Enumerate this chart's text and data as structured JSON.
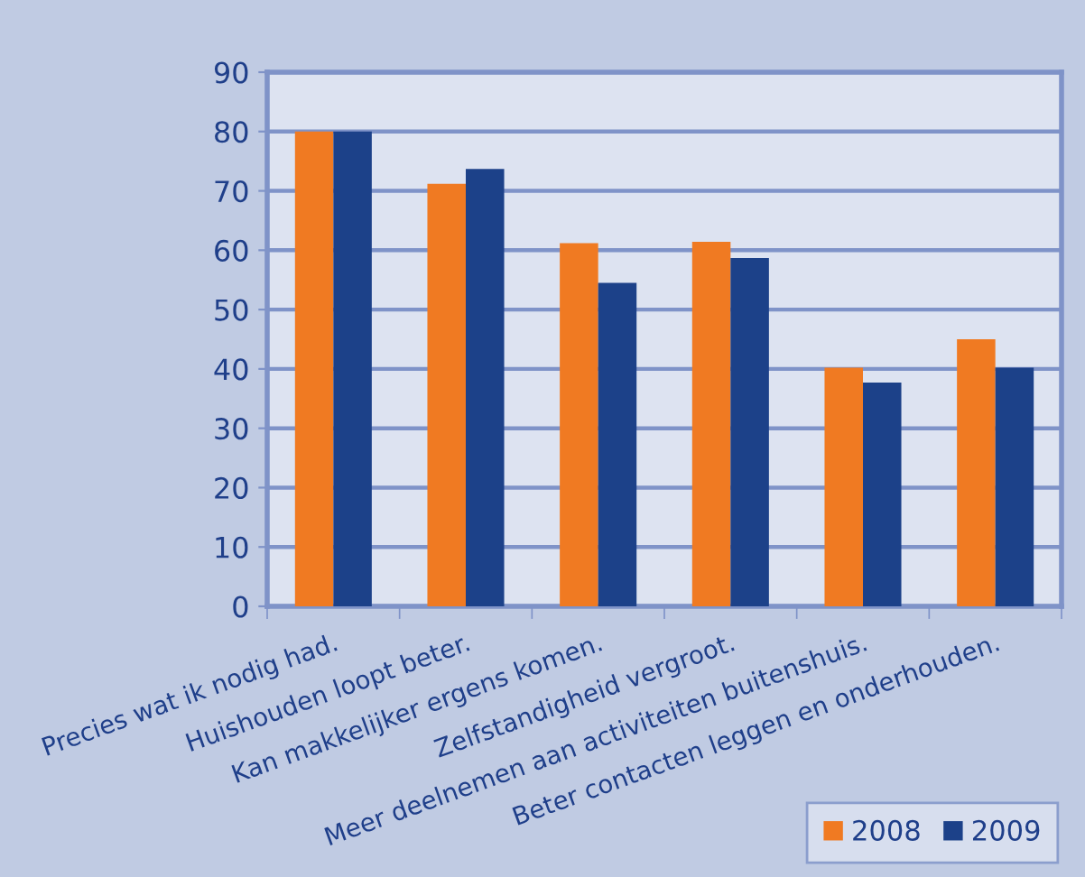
{
  "chart_data": {
    "type": "bar",
    "categories": [
      "Precies wat ik nodig had.",
      "Huishouden loopt beter.",
      "Kan makkelijker ergens komen.",
      "Zelfstandigheid vergroot.",
      "Meer deelnemen aan activiteiten buitenshuis.",
      "Beter contacten leggen en onderhouden."
    ],
    "series": [
      {
        "name": "2008",
        "color": "#f07a22",
        "values": [
          80,
          71.2,
          61.2,
          61.4,
          40.2,
          45
        ]
      },
      {
        "name": "2009",
        "color": "#1c4189",
        "values": [
          80,
          73.7,
          54.5,
          58.7,
          37.7,
          40.2
        ]
      }
    ],
    "ylim": [
      0,
      90
    ],
    "yticks": [
      0,
      10,
      20,
      30,
      40,
      50,
      60,
      70,
      80,
      90
    ],
    "grid": "y",
    "legend": "bottom right"
  }
}
